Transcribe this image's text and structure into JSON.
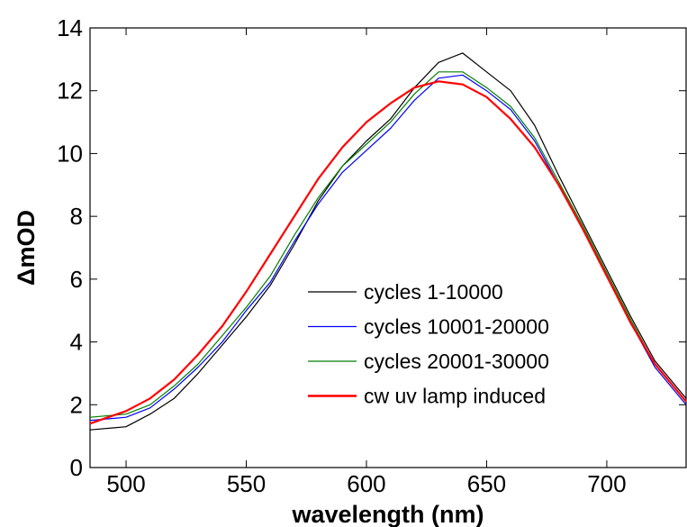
{
  "chart_data": {
    "type": "line",
    "title": "",
    "xlabel": "wavelength (nm)",
    "ylabel": "ΔmOD",
    "xlim": [
      485,
      733
    ],
    "ylim": [
      0,
      14
    ],
    "xticks": [
      500,
      550,
      600,
      650,
      700
    ],
    "yticks": [
      0,
      2,
      4,
      6,
      8,
      10,
      12,
      14
    ],
    "grid": false,
    "legend_position": "lower-right",
    "series": [
      {
        "name": "cycles 1-10000",
        "color": "#000000",
        "x": [
          485,
          500,
          510,
          520,
          530,
          540,
          550,
          560,
          570,
          580,
          590,
          600,
          610,
          620,
          630,
          640,
          650,
          660,
          670,
          680,
          690,
          700,
          710,
          720,
          733
        ],
        "y": [
          1.2,
          1.3,
          1.7,
          2.2,
          3.0,
          3.9,
          4.8,
          5.8,
          7.1,
          8.5,
          9.6,
          10.4,
          11.1,
          12.1,
          12.9,
          13.2,
          12.6,
          12.0,
          10.9,
          9.3,
          7.8,
          6.3,
          4.8,
          3.4,
          2.2
        ]
      },
      {
        "name": "cycles 10001-20000",
        "color": "#0000ff",
        "x": [
          485,
          500,
          510,
          520,
          530,
          540,
          550,
          560,
          570,
          580,
          590,
          600,
          610,
          620,
          630,
          640,
          650,
          660,
          670,
          680,
          690,
          700,
          710,
          720,
          733
        ],
        "y": [
          1.5,
          1.6,
          1.9,
          2.5,
          3.2,
          4.0,
          5.0,
          5.9,
          7.2,
          8.4,
          9.4,
          10.1,
          10.8,
          11.7,
          12.4,
          12.5,
          12.0,
          11.4,
          10.4,
          9.0,
          7.6,
          6.1,
          4.6,
          3.2,
          2.0
        ]
      },
      {
        "name": "cycles 20001-30000",
        "color": "#008000",
        "x": [
          485,
          500,
          510,
          520,
          530,
          540,
          550,
          560,
          570,
          580,
          590,
          600,
          610,
          620,
          630,
          640,
          650,
          660,
          670,
          680,
          690,
          700,
          710,
          720,
          733
        ],
        "y": [
          1.6,
          1.7,
          2.0,
          2.6,
          3.3,
          4.2,
          5.1,
          6.1,
          7.4,
          8.6,
          9.6,
          10.3,
          11.0,
          11.9,
          12.6,
          12.6,
          12.1,
          11.5,
          10.5,
          9.1,
          7.7,
          6.2,
          4.7,
          3.3,
          2.1
        ]
      },
      {
        "name": "cw uv lamp induced",
        "color": "#ff0000",
        "x": [
          485,
          500,
          510,
          520,
          530,
          540,
          550,
          560,
          570,
          580,
          590,
          600,
          610,
          620,
          630,
          640,
          650,
          660,
          670,
          680,
          690,
          700,
          710,
          720,
          733
        ],
        "y": [
          1.4,
          1.8,
          2.2,
          2.8,
          3.6,
          4.5,
          5.6,
          6.8,
          8.0,
          9.2,
          10.2,
          11.0,
          11.6,
          12.1,
          12.3,
          12.2,
          11.8,
          11.1,
          10.2,
          9.0,
          7.6,
          6.1,
          4.6,
          3.3,
          2.1
        ]
      }
    ]
  }
}
